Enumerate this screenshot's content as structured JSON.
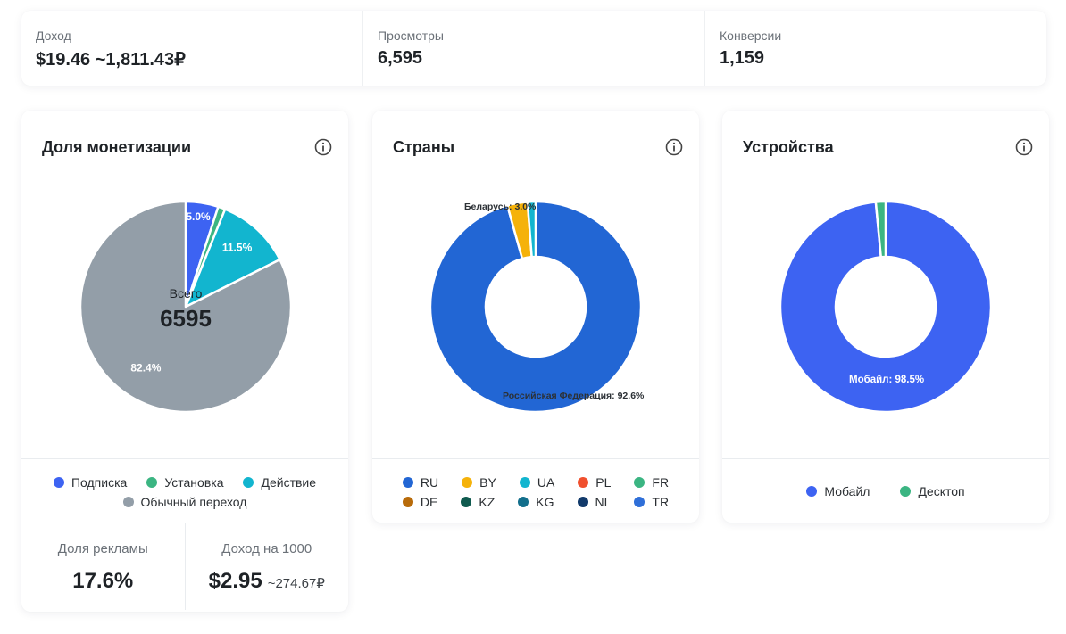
{
  "stats": [
    {
      "label": "Доход",
      "value": "$19.46 ~1,811.43₽"
    },
    {
      "label": "Просмотры",
      "value": "6,595"
    },
    {
      "label": "Конверсии",
      "value": "1,159"
    }
  ],
  "monetization": {
    "title": "Доля монетизации",
    "center_label": "Всего",
    "center_value": "6595",
    "legend": [
      {
        "name": "Подписка",
        "color": "#3d63f2"
      },
      {
        "name": "Установка",
        "color": "#3bb582"
      },
      {
        "name": "Действие",
        "color": "#12b5cf"
      },
      {
        "name": "Обычный переход",
        "color": "#939ea8"
      }
    ],
    "ad_share_label": "Доля рекламы",
    "ad_share_value": "17.6%",
    "per1000_label": "Доход на 1000",
    "per1000_value": "$2.95",
    "per1000_sub": "~274.67₽"
  },
  "countries": {
    "title": "Страны",
    "legend": [
      {
        "name": "RU",
        "color": "#2266d4"
      },
      {
        "name": "BY",
        "color": "#f5b20a"
      },
      {
        "name": "UA",
        "color": "#12b5cf"
      },
      {
        "name": "PL",
        "color": "#f0502e"
      },
      {
        "name": "FR",
        "color": "#3bb582"
      },
      {
        "name": "DE",
        "color": "#b86b0a"
      },
      {
        "name": "KZ",
        "color": "#0f5a4e"
      },
      {
        "name": "KG",
        "color": "#136f8c"
      },
      {
        "name": "NL",
        "color": "#123a6b"
      },
      {
        "name": "TR",
        "color": "#2f6fd8"
      }
    ]
  },
  "devices": {
    "title": "Устройства",
    "legend": [
      {
        "name": "Мобайл",
        "color": "#3d63f2"
      },
      {
        "name": "Десктоп",
        "color": "#3bb582"
      }
    ]
  },
  "chart_data": [
    {
      "type": "pie",
      "title": "Доля монетизации",
      "categories": [
        "Подписка",
        "Установка",
        "Действие",
        "Обычный переход"
      ],
      "values": [
        5.0,
        1.1,
        11.5,
        82.4
      ],
      "labels": [
        "5.0%",
        "",
        "11.5%",
        "82.4%"
      ],
      "colors": [
        "#3d63f2",
        "#3bb582",
        "#12b5cf",
        "#939ea8"
      ]
    },
    {
      "type": "pie",
      "title": "Страны",
      "categories": [
        "RU",
        "BY",
        "UA"
      ],
      "values": [
        92.6,
        3.0,
        1.2
      ],
      "labels": [
        "Российская Федерация: 92.6%",
        "Беларусь: 3.0%",
        ""
      ],
      "colors": [
        "#2266d4",
        "#f5b20a",
        "#12b5cf"
      ]
    },
    {
      "type": "pie",
      "title": "Устройства",
      "categories": [
        "Мобайл",
        "Десктоп"
      ],
      "values": [
        98.5,
        1.5
      ],
      "labels": [
        "Мобайл: 98.5%",
        ""
      ],
      "colors": [
        "#3d63f2",
        "#3bb582"
      ]
    }
  ]
}
